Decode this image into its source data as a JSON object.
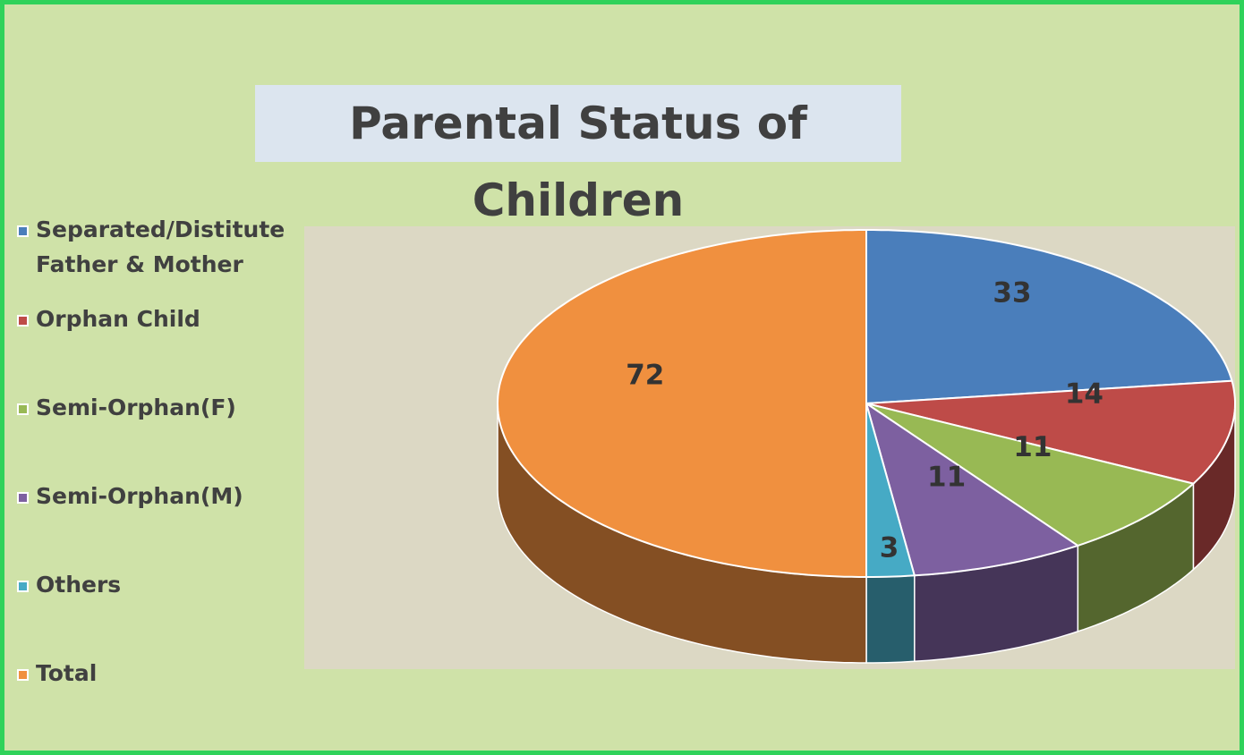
{
  "chart_data": {
    "type": "pie",
    "title": "Parental Status of Children",
    "categories": [
      "Separated/Distitute Father & Mother",
      "Orphan Child",
      "Semi-Orphan(F)",
      "Semi-Orphan(M)",
      "Others",
      "Total"
    ],
    "values": [
      33,
      14,
      11,
      11,
      3,
      72
    ],
    "colors": [
      "#4a7ebb",
      "#be4b48",
      "#98b954",
      "#7d60a0",
      "#46aac5",
      "#f0903f"
    ],
    "legend": "left"
  }
}
